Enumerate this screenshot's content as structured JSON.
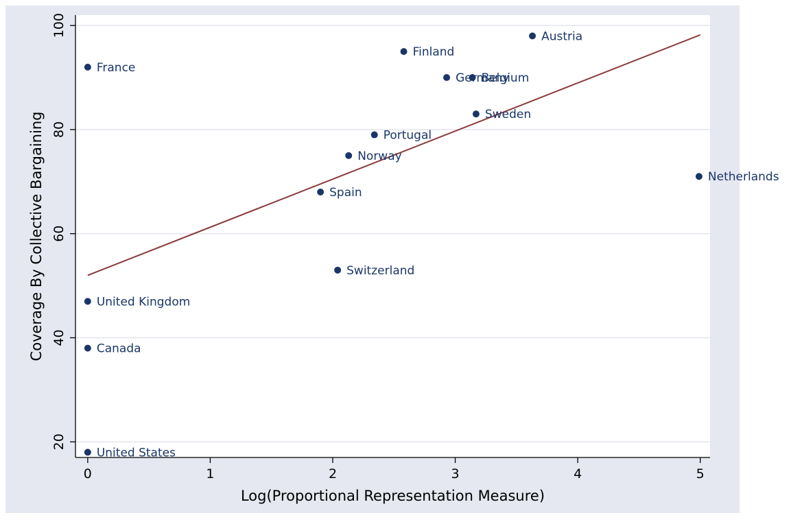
{
  "chart_data": {
    "type": "scatter",
    "title": "",
    "xlabel": "Log(Proportional Representation Measure)",
    "ylabel": "Coverage By Collective Bargaining",
    "xlim": [
      -0.1,
      5.08
    ],
    "ylim": [
      17,
      102
    ],
    "xticks": [
      0,
      1,
      2,
      3,
      4,
      5
    ],
    "yticks": [
      20,
      40,
      60,
      80,
      100
    ],
    "grid": "horizontal",
    "legend": "none",
    "points": [
      {
        "label": "Austria",
        "x": 3.63,
        "y": 98
      },
      {
        "label": "Finland",
        "x": 2.58,
        "y": 95
      },
      {
        "label": "France",
        "x": 0.0,
        "y": 92
      },
      {
        "label": "Germany",
        "x": 2.93,
        "y": 90
      },
      {
        "label": "Belgium",
        "x": 3.14,
        "y": 90
      },
      {
        "label": "Sweden",
        "x": 3.17,
        "y": 83
      },
      {
        "label": "Portugal",
        "x": 2.34,
        "y": 79
      },
      {
        "label": "Norway",
        "x": 2.13,
        "y": 75
      },
      {
        "label": "Netherlands",
        "x": 4.99,
        "y": 71
      },
      {
        "label": "Spain",
        "x": 1.9,
        "y": 68
      },
      {
        "label": "Switzerland",
        "x": 2.04,
        "y": 53
      },
      {
        "label": "United  Kingdom",
        "x": 0.0,
        "y": 47
      },
      {
        "label": "Canada",
        "x": 0.0,
        "y": 38
      },
      {
        "label": "United States",
        "x": 0.0,
        "y": 18
      }
    ],
    "fit_line": {
      "x": [
        0,
        5
      ],
      "y": [
        52,
        98.2
      ]
    },
    "colors": {
      "plot_region_bg": "#ffffff",
      "outer_bg": "#e5e8f0",
      "grid": "#e3e6ee",
      "marker": "#1a3668",
      "point_label": "#1a3668",
      "fit_line": "#8b3a3a",
      "axis": "#000000"
    }
  }
}
